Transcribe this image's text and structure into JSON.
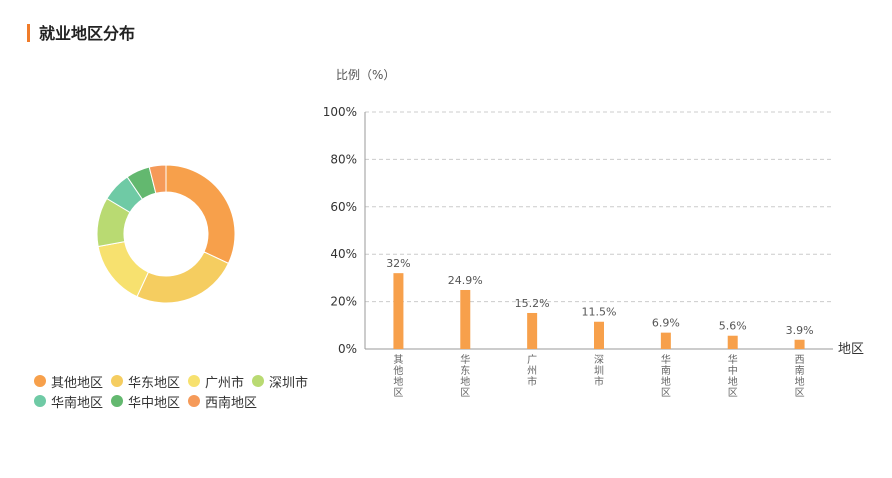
{
  "header": {
    "title": "就业地区分布"
  },
  "legend": {
    "rows": [
      [
        {
          "label": "其他地区",
          "color": "#f7a04b"
        },
        {
          "label": "华东地区",
          "color": "#f5cd60"
        },
        {
          "label": "广州市",
          "color": "#f7e16f"
        },
        {
          "label": "深圳市",
          "color": "#b9da72"
        }
      ],
      [
        {
          "label": "华南地区",
          "color": "#6fcaa5"
        },
        {
          "label": "华中地区",
          "color": "#63b86f"
        },
        {
          "label": "西南地区",
          "color": "#f59a59"
        }
      ]
    ]
  },
  "chart_data": [
    {
      "type": "pie",
      "donut": true,
      "categories": [
        "其他地区",
        "华东地区",
        "广州市",
        "深圳市",
        "华南地区",
        "华中地区",
        "西南地区"
      ],
      "values": [
        32,
        24.9,
        15.2,
        11.5,
        6.9,
        5.6,
        3.9
      ],
      "colors": [
        "#f7a04b",
        "#f5cd60",
        "#f7e16f",
        "#b9da72",
        "#6fcaa5",
        "#63b86f",
        "#f59a59"
      ]
    },
    {
      "type": "bar",
      "ylabel": "比例（%）",
      "xlabel": "地区",
      "categories": [
        "其他地区",
        "华东地区",
        "广州市",
        "深圳市",
        "华南地区",
        "华中地区",
        "西南地区"
      ],
      "values": [
        32,
        24.9,
        15.2,
        11.5,
        6.9,
        5.6,
        3.9
      ],
      "value_labels": [
        "32%",
        "24.9%",
        "15.2%",
        "11.5%",
        "6.9%",
        "5.6%",
        "3.9%"
      ],
      "yticks": [
        "0%",
        "20%",
        "40%",
        "60%",
        "80%",
        "100%"
      ],
      "ylim": [
        0,
        100
      ],
      "bar_color": "#f7a04b",
      "grid": true
    }
  ]
}
